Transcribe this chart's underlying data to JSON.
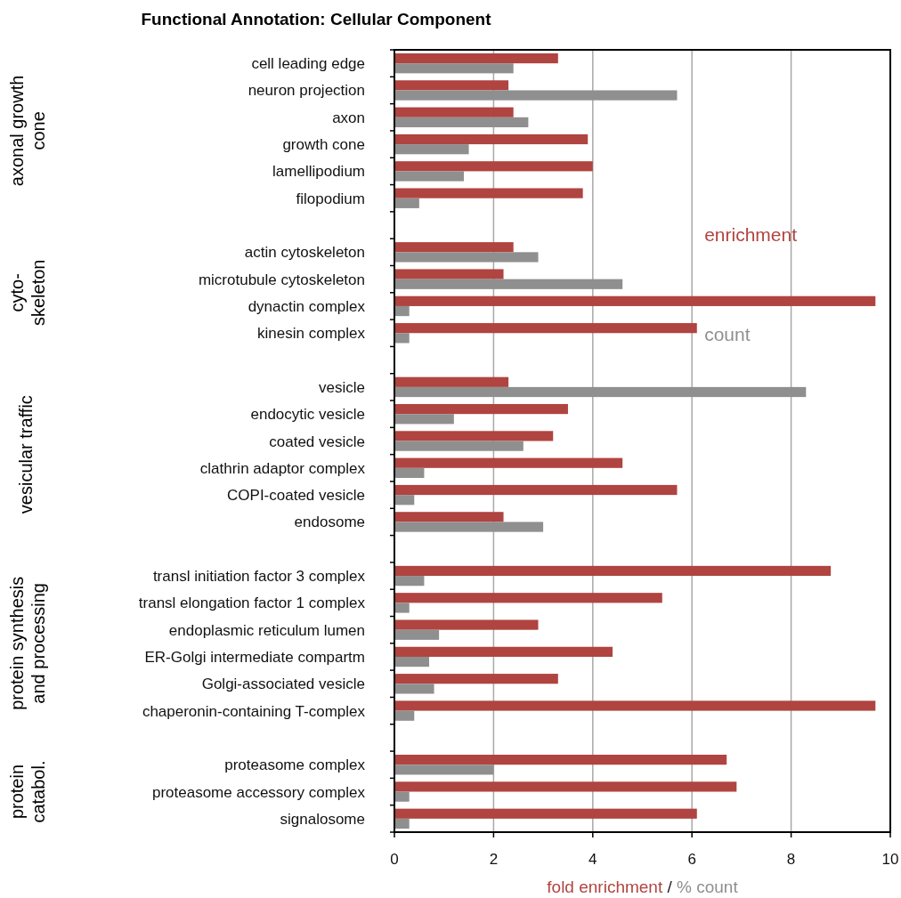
{
  "chart_data": {
    "type": "bar",
    "orientation": "horizontal",
    "title": "Functional Annotation: Cellular Component",
    "xlabel": "fold enrichment / % count",
    "categories": [
      "cell leading edge",
      "neuron projection",
      "axon",
      "growth cone",
      "lamellipodium",
      "filopodium",
      null,
      "actin cytoskeleton",
      "microtubule cytoskeleton",
      "dynactin complex",
      "kinesin complex",
      null,
      "vesicle",
      "endocytic vesicle",
      "coated vesicle",
      "clathrin adaptor complex",
      "COPI-coated vesicle",
      "endosome",
      null,
      "transl initiation factor 3 complex",
      "transl elongation factor 1 complex",
      "endoplasmic reticulum lumen",
      "ER-Golgi intermediate compartm",
      "Golgi-associated vesicle",
      "chaperonin-containing T-complex",
      null,
      "proteasome complex",
      "proteasome accessory complex",
      "signalosome"
    ],
    "series": [
      {
        "name": "enrichment",
        "color": "#b04440",
        "values": [
          3.3,
          2.3,
          2.4,
          3.9,
          4.0,
          3.8,
          null,
          2.4,
          2.2,
          9.7,
          6.1,
          null,
          2.3,
          3.5,
          3.2,
          4.6,
          5.7,
          2.2,
          null,
          8.8,
          5.4,
          2.9,
          4.4,
          3.3,
          9.7,
          null,
          6.7,
          6.9,
          6.1
        ]
      },
      {
        "name": "count",
        "color": "#8f8f8f",
        "values": [
          2.4,
          5.7,
          2.7,
          1.5,
          1.4,
          0.5,
          null,
          2.9,
          4.6,
          0.3,
          0.3,
          null,
          8.3,
          1.2,
          2.6,
          0.6,
          0.4,
          3.0,
          null,
          0.6,
          0.3,
          0.9,
          0.7,
          0.8,
          0.4,
          null,
          2.0,
          0.3,
          0.3
        ]
      }
    ],
    "xlim": [
      0,
      10
    ],
    "xticks": [
      0,
      2,
      4,
      6,
      8,
      10
    ],
    "grid": "x",
    "legend": false,
    "annotations": [
      "axonal growth\ncone",
      "cyto-\nskeleton",
      "vesicular traffic",
      "protein synthesis\nand processing",
      "protein\ncatabol."
    ]
  }
}
